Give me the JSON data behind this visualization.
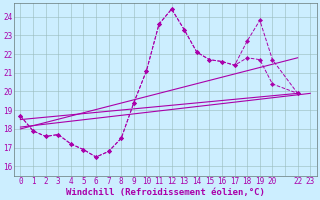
{
  "background_color": "#cceeff",
  "line_color": "#aa00aa",
  "grid_color": "#99bbbb",
  "xlabel": "Windchill (Refroidissement éolien,°C)",
  "ylabel_ticks": [
    16,
    17,
    18,
    19,
    20,
    21,
    22,
    23,
    24
  ],
  "xlim": [
    -0.5,
    23.5
  ],
  "ylim": [
    15.5,
    24.7
  ],
  "xtick_positions": [
    0,
    1,
    2,
    3,
    4,
    5,
    6,
    7,
    8,
    9,
    10,
    11,
    12,
    13,
    14,
    15,
    16,
    17,
    18,
    19,
    20,
    21,
    22,
    23
  ],
  "xtick_labels": [
    "0",
    "1",
    "2",
    "3",
    "4",
    "5",
    "6",
    "7",
    "8",
    "9",
    "10",
    "11",
    "12",
    "13",
    "14",
    "15",
    "16",
    "17",
    "18",
    "19",
    "20",
    "",
    "22",
    "23"
  ],
  "series1_x": [
    0,
    1,
    2,
    3,
    4,
    5,
    6,
    7,
    8,
    9,
    10,
    11,
    12,
    13,
    14,
    15,
    16,
    17,
    18,
    19,
    20,
    22
  ],
  "series1_y": [
    18.7,
    17.9,
    17.6,
    17.7,
    17.2,
    16.9,
    16.5,
    16.8,
    17.5,
    19.4,
    21.1,
    23.6,
    24.4,
    23.3,
    22.1,
    21.7,
    21.6,
    21.4,
    21.8,
    21.7,
    20.4,
    19.9
  ],
  "series2_x": [
    0,
    1,
    2,
    3,
    4,
    5,
    6,
    7,
    8,
    9,
    10,
    11,
    12,
    13,
    14,
    15,
    16,
    17,
    18,
    19,
    20,
    22
  ],
  "series2_y": [
    18.7,
    17.9,
    17.6,
    17.7,
    17.2,
    16.9,
    16.5,
    16.8,
    17.5,
    19.4,
    21.1,
    23.6,
    24.4,
    23.3,
    22.1,
    21.7,
    21.6,
    21.4,
    22.7,
    23.8,
    21.7,
    19.9
  ],
  "trend1_x": [
    0,
    23
  ],
  "trend1_y": [
    18.1,
    19.9
  ],
  "trend2_x": [
    0,
    22
  ],
  "trend2_y": [
    18.0,
    21.8
  ],
  "trend3_x": [
    0,
    22
  ],
  "trend3_y": [
    18.5,
    19.9
  ],
  "xlabel_fontsize": 6.5,
  "tick_fontsize": 5.5
}
